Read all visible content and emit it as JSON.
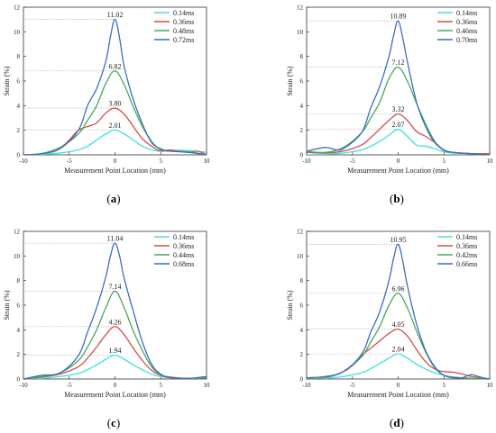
{
  "chart_data": [
    {
      "type": "line",
      "panel_label": "a",
      "xlabel": "Measurement Point Location (mm)",
      "ylabel": "Strain (%)",
      "xlim": [
        -10,
        10
      ],
      "ylim": [
        0,
        12
      ],
      "xticks": [
        -10,
        -5,
        0,
        5,
        10
      ],
      "yticks": [
        0,
        2,
        4,
        6,
        8,
        10,
        12
      ],
      "legend_position": "top-right",
      "series": [
        {
          "name": "0.14ms",
          "color": "#3ee0e0",
          "x": [
            -10,
            -8,
            -6,
            -4,
            -3,
            -2,
            -1,
            0,
            1,
            2,
            3,
            4,
            5,
            6,
            8,
            10
          ],
          "y": [
            0.0,
            0.05,
            0.15,
            0.4,
            0.7,
            1.2,
            1.7,
            2.01,
            1.7,
            1.2,
            0.7,
            0.4,
            0.3,
            0.35,
            0.35,
            0.2
          ]
        },
        {
          "name": "0.36ms",
          "color": "#d94a4a",
          "x": [
            -10,
            -8,
            -6,
            -5,
            -4,
            -3,
            -2,
            -1,
            0,
            1,
            2,
            3,
            4,
            5,
            6,
            8,
            9,
            10
          ],
          "y": [
            0.0,
            0.1,
            0.6,
            1.2,
            2.0,
            2.3,
            2.6,
            3.4,
            3.8,
            3.3,
            2.3,
            1.3,
            0.7,
            0.3,
            0.4,
            0.2,
            0.3,
            0.0
          ]
        },
        {
          "name": "0.48ms",
          "color": "#4aa85a",
          "x": [
            -10,
            -8,
            -6,
            -4,
            -3,
            -2,
            -1,
            0,
            1,
            2,
            3,
            4,
            5,
            6,
            8,
            10
          ],
          "y": [
            0.0,
            0.1,
            0.6,
            1.7,
            2.8,
            4.0,
            5.8,
            6.82,
            5.7,
            3.9,
            2.3,
            1.1,
            0.4,
            0.3,
            0.25,
            0.0
          ]
        },
        {
          "name": "0.72ms",
          "color": "#3a6fc0",
          "x": [
            -10,
            -8,
            -6,
            -4,
            -3,
            -2,
            -1,
            -0.5,
            0,
            0.5,
            1,
            2,
            3,
            4,
            5,
            6,
            8,
            10
          ],
          "y": [
            0.0,
            0.1,
            0.5,
            2.0,
            4.0,
            5.4,
            7.6,
            9.6,
            11.02,
            9.5,
            7.2,
            4.5,
            2.5,
            1.0,
            0.5,
            0.3,
            0.2,
            0.0
          ]
        }
      ],
      "peak_labels": [
        "11.02",
        "6.82",
        "3.80",
        "2.01"
      ],
      "peak_values": [
        11.02,
        6.82,
        3.8,
        2.01
      ]
    },
    {
      "type": "line",
      "panel_label": "b",
      "xlabel": "Measurement Point Location (mm)",
      "ylabel": "Strain (%)",
      "xlim": [
        -10,
        10
      ],
      "ylim": [
        0,
        12
      ],
      "xticks": [
        -10,
        -5,
        0,
        5,
        10
      ],
      "yticks": [
        0,
        2,
        4,
        6,
        8,
        10,
        12
      ],
      "legend_position": "top-right",
      "series": [
        {
          "name": "0.14ms",
          "color": "#3ee0e0",
          "x": [
            -10,
            -8,
            -6,
            -4,
            -3,
            -2,
            -1,
            0,
            1,
            2,
            3,
            4,
            5,
            6,
            8,
            10
          ],
          "y": [
            0.0,
            0.05,
            0.15,
            0.4,
            0.7,
            1.1,
            1.6,
            2.07,
            1.5,
            0.8,
            0.7,
            0.5,
            0.25,
            0.15,
            0.1,
            0.0
          ]
        },
        {
          "name": "0.36ms",
          "color": "#d94a4a",
          "x": [
            -10,
            -8,
            -6,
            -4,
            -3,
            -2,
            -1,
            0,
            1,
            2,
            3,
            4,
            5,
            6,
            8,
            10
          ],
          "y": [
            0.2,
            0.15,
            0.3,
            0.8,
            1.4,
            2.1,
            2.8,
            3.32,
            2.8,
            1.9,
            1.5,
            1.0,
            0.4,
            0.2,
            0.1,
            0.1
          ]
        },
        {
          "name": "0.46ms",
          "color": "#4aa85a",
          "x": [
            -10,
            -8,
            -6,
            -4,
            -3,
            -2,
            -1,
            0,
            1,
            2,
            3,
            4,
            5,
            6,
            8,
            10
          ],
          "y": [
            0.3,
            0.2,
            0.6,
            1.8,
            3.0,
            4.3,
            6.2,
            7.12,
            6.0,
            4.2,
            2.5,
            1.1,
            0.35,
            0.2,
            0.1,
            0.0
          ]
        },
        {
          "name": "0.70ms",
          "color": "#3a6fc0",
          "x": [
            -10,
            -8,
            -7,
            -6,
            -4,
            -3,
            -2,
            -1,
            -0.5,
            0,
            0.5,
            1,
            2,
            3,
            4,
            5,
            6,
            8,
            10
          ],
          "y": [
            0.3,
            0.6,
            0.45,
            0.5,
            1.8,
            3.8,
            5.6,
            8.0,
            9.7,
            10.89,
            9.5,
            7.6,
            4.3,
            2.3,
            1.0,
            0.4,
            0.2,
            0.1,
            0.0
          ]
        }
      ],
      "peak_labels": [
        "10.89",
        "7.12",
        "3.32",
        "2.07"
      ],
      "peak_values": [
        10.89,
        7.12,
        3.32,
        2.07
      ]
    },
    {
      "type": "line",
      "panel_label": "c",
      "xlabel": "Measurement Point Location (mm)",
      "ylabel": "Strain (%)",
      "xlim": [
        -10,
        10
      ],
      "ylim": [
        0,
        12
      ],
      "xticks": [
        -10,
        -5,
        0,
        5,
        10
      ],
      "yticks": [
        0,
        2,
        4,
        6,
        8,
        10,
        12
      ],
      "legend_position": "top-right",
      "series": [
        {
          "name": "0.14ms",
          "color": "#3ee0e0",
          "x": [
            -10,
            -8,
            -6,
            -4,
            -3,
            -2,
            -1,
            0,
            1,
            2,
            3,
            4,
            5,
            6,
            8,
            10
          ],
          "y": [
            0.0,
            0.05,
            0.2,
            0.45,
            0.75,
            1.15,
            1.6,
            1.94,
            1.6,
            1.15,
            0.75,
            0.4,
            0.2,
            0.1,
            0.05,
            0.1
          ]
        },
        {
          "name": "0.36ms",
          "color": "#d94a4a",
          "x": [
            -10,
            -8,
            -6,
            -4,
            -3,
            -2,
            -1,
            0,
            1,
            2,
            3,
            4,
            5,
            6,
            8,
            10
          ],
          "y": [
            0.0,
            0.15,
            0.4,
            1.0,
            1.7,
            2.6,
            3.6,
            4.26,
            3.6,
            2.5,
            1.5,
            0.7,
            0.3,
            0.1,
            0.05,
            0.1
          ]
        },
        {
          "name": "0.44ms",
          "color": "#4aa85a",
          "x": [
            -10,
            -8,
            -6,
            -4,
            -3,
            -2,
            -1,
            0,
            1,
            2,
            3,
            4,
            5,
            6,
            8,
            10
          ],
          "y": [
            0.0,
            0.2,
            0.5,
            1.5,
            2.6,
            4.0,
            5.8,
            7.14,
            5.8,
            3.9,
            2.3,
            1.0,
            0.35,
            0.15,
            0.05,
            0.1
          ]
        },
        {
          "name": "0.68ms",
          "color": "#3a6fc0",
          "x": [
            -10,
            -8,
            -6,
            -4,
            -3,
            -2,
            -1,
            -0.5,
            0,
            0.5,
            1,
            2,
            3,
            4,
            5,
            6,
            8,
            10
          ],
          "y": [
            0.0,
            0.3,
            0.5,
            1.9,
            3.8,
            5.8,
            8.3,
            10.0,
            11.04,
            10.0,
            8.2,
            5.5,
            3.0,
            1.2,
            0.4,
            0.15,
            0.05,
            0.2
          ]
        }
      ],
      "peak_labels": [
        "11.04",
        "7.14",
        "4.26",
        "1.94"
      ],
      "peak_values": [
        11.04,
        7.14,
        4.26,
        1.94
      ]
    },
    {
      "type": "line",
      "panel_label": "d",
      "xlabel": "Measurement Point Location (mm)",
      "ylabel": "Strain (%)",
      "xlim": [
        -10,
        10
      ],
      "ylim": [
        0,
        12
      ],
      "xticks": [
        -10,
        -5,
        0,
        5,
        10
      ],
      "yticks": [
        0,
        2,
        4,
        6,
        8,
        10,
        12
      ],
      "legend_position": "top-right",
      "series": [
        {
          "name": "0.14ms",
          "color": "#3ee0e0",
          "x": [
            -10,
            -8,
            -6,
            -4,
            -3,
            -2,
            -1,
            0,
            1,
            2,
            3,
            4,
            5,
            6,
            8,
            10
          ],
          "y": [
            0.0,
            0.05,
            0.2,
            0.5,
            0.85,
            1.25,
            1.7,
            2.04,
            1.7,
            1.2,
            0.8,
            0.5,
            0.3,
            0.15,
            0.05,
            0.0
          ]
        },
        {
          "name": "0.36ms",
          "color": "#d94a4a",
          "x": [
            -10,
            -8,
            -6,
            -5,
            -4,
            -3,
            -2,
            -1,
            0,
            1,
            2,
            3,
            4,
            5,
            6,
            7,
            8,
            10
          ],
          "y": [
            0.0,
            0.1,
            0.6,
            1.1,
            1.9,
            2.5,
            3.1,
            3.7,
            4.05,
            3.5,
            2.4,
            1.4,
            0.8,
            0.6,
            0.55,
            0.4,
            0.2,
            0.0
          ]
        },
        {
          "name": "0.42ms",
          "color": "#4aa85a",
          "x": [
            -10,
            -8,
            -6,
            -4,
            -3,
            -2,
            -1,
            0,
            1,
            2,
            3,
            4,
            5,
            6,
            8,
            10
          ],
          "y": [
            0.0,
            0.1,
            0.6,
            1.8,
            3.0,
            4.3,
            6.0,
            6.96,
            5.8,
            3.9,
            2.2,
            0.9,
            0.3,
            0.15,
            0.05,
            0.0
          ]
        },
        {
          "name": "0.66ms",
          "color": "#3a6fc0",
          "x": [
            -10,
            -8,
            -6,
            -4,
            -3,
            -2,
            -1,
            -0.5,
            0,
            0.5,
            1,
            2,
            3,
            4,
            5,
            6,
            7,
            8,
            9,
            10
          ],
          "y": [
            0.1,
            0.2,
            0.6,
            2.0,
            3.8,
            5.5,
            8.0,
            9.8,
            10.95,
            9.6,
            7.6,
            4.5,
            2.3,
            1.0,
            0.3,
            0.1,
            0.1,
            0.35,
            0.15,
            0.0
          ]
        }
      ],
      "peak_labels": [
        "10.95",
        "6.96",
        "4.05",
        "2.04"
      ],
      "peak_values": [
        10.95,
        6.96,
        4.05,
        2.04
      ]
    }
  ]
}
